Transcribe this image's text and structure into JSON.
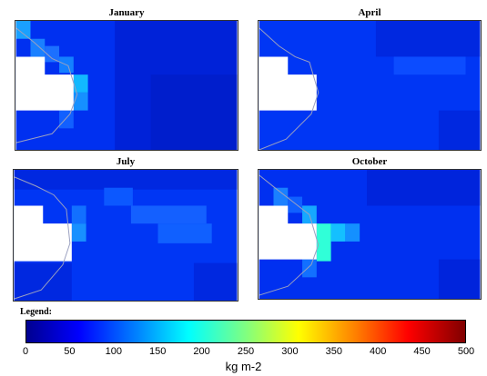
{
  "panels": [
    {
      "title": "January"
    },
    {
      "title": "April"
    },
    {
      "title": "July"
    },
    {
      "title": "October"
    }
  ],
  "legend": {
    "label": "Legend:",
    "units": "kg m-2",
    "ticks": [
      "0",
      "50",
      "100",
      "150",
      "200",
      "250",
      "300",
      "350",
      "400",
      "450",
      "500"
    ]
  },
  "colors": {
    "base_blue": "#0033ff",
    "dark_blue": "#0020d8",
    "light_blue": "#1e6bff",
    "cyan": "#00e0ff",
    "land": "#ffffff"
  }
}
